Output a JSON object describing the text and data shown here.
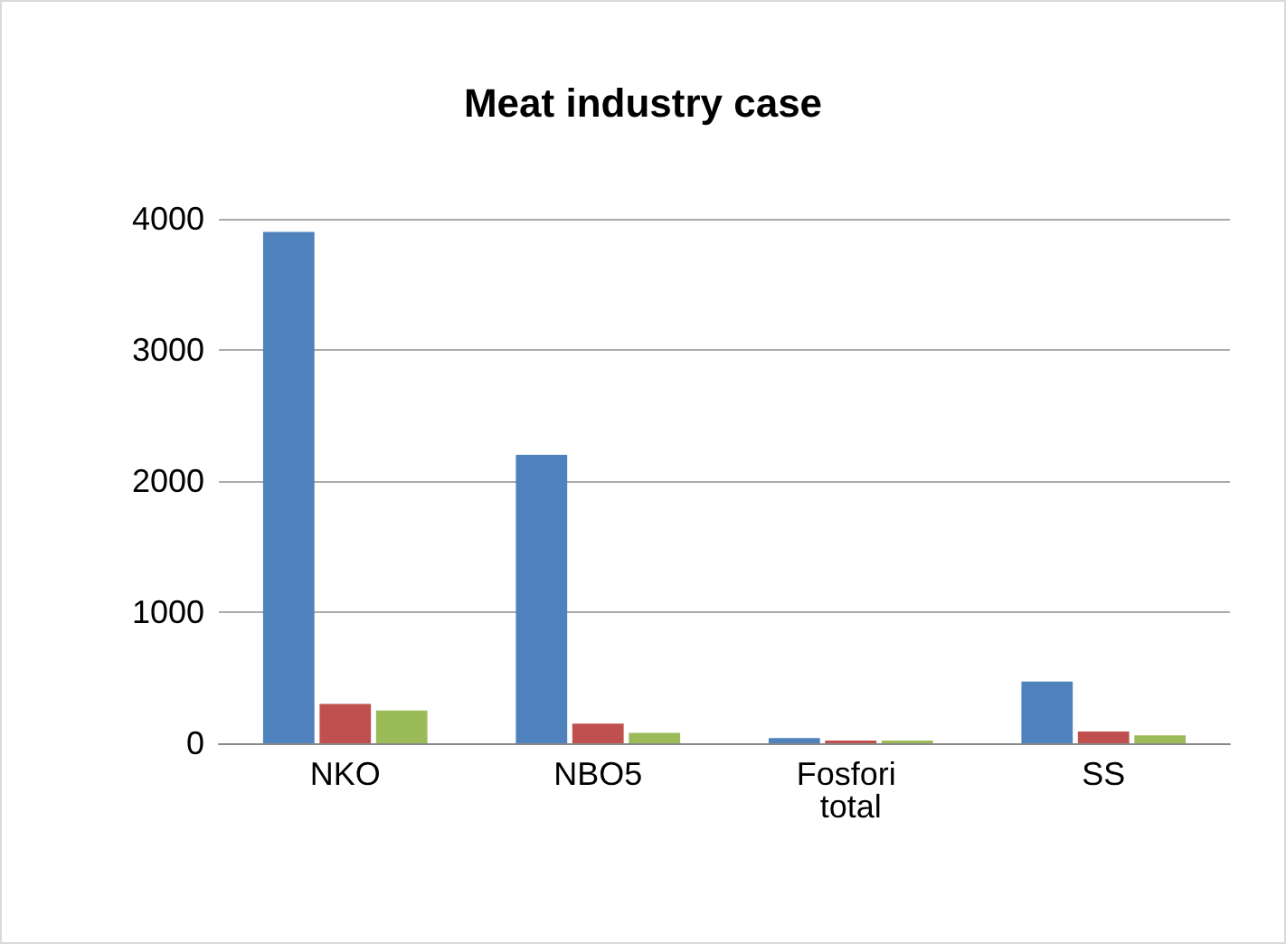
{
  "chart_data": {
    "type": "bar",
    "title": "Meat industry case",
    "categories": [
      "NKO",
      "NBO5",
      "Fosfori total",
      "SS"
    ],
    "series": [
      {
        "color": "#4f81bd",
        "values": [
          3900,
          2200,
          40,
          470
        ]
      },
      {
        "color": "#c0504d",
        "values": [
          300,
          150,
          20,
          90
        ]
      },
      {
        "color": "#9bbb59",
        "values": [
          250,
          80,
          20,
          60
        ]
      }
    ],
    "ylim": [
      0,
      4000
    ],
    "yticks": [
      0,
      1000,
      2000,
      3000,
      4000
    ],
    "grid": "y"
  }
}
